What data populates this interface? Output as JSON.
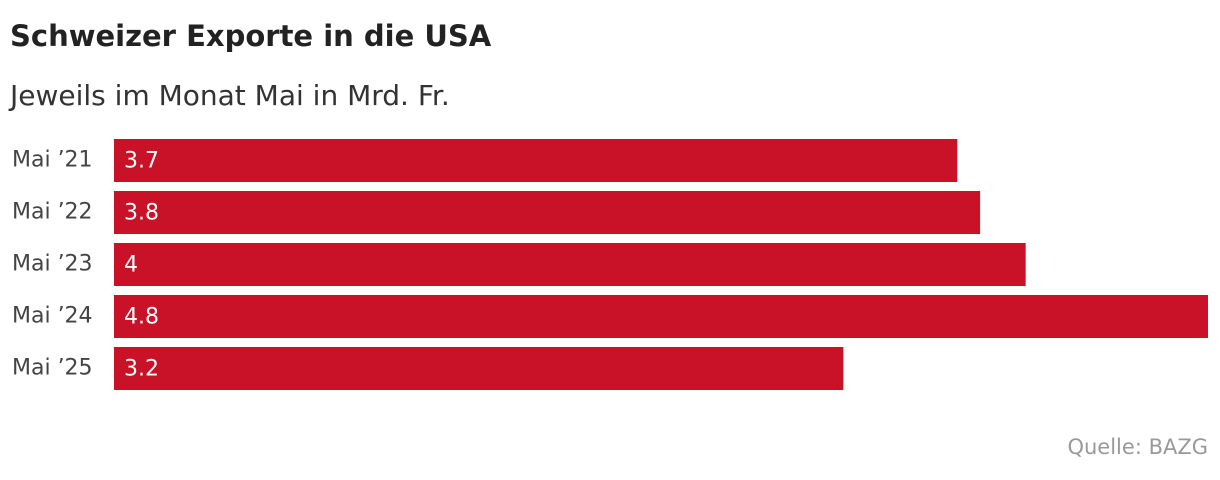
{
  "chart_data": {
    "type": "bar",
    "orientation": "horizontal",
    "title": "Schweizer Exporte in die USA",
    "subtitle": "Jeweils im Monat Mai in Mrd. Fr.",
    "categories": [
      "Mai ’21",
      "Mai ’22",
      "Mai ’23",
      "Mai ’24",
      "Mai ’25"
    ],
    "values": [
      3.7,
      3.8,
      4,
      4.8,
      3.2
    ],
    "color": "#c91128",
    "source": "Quelle: BAZG"
  }
}
